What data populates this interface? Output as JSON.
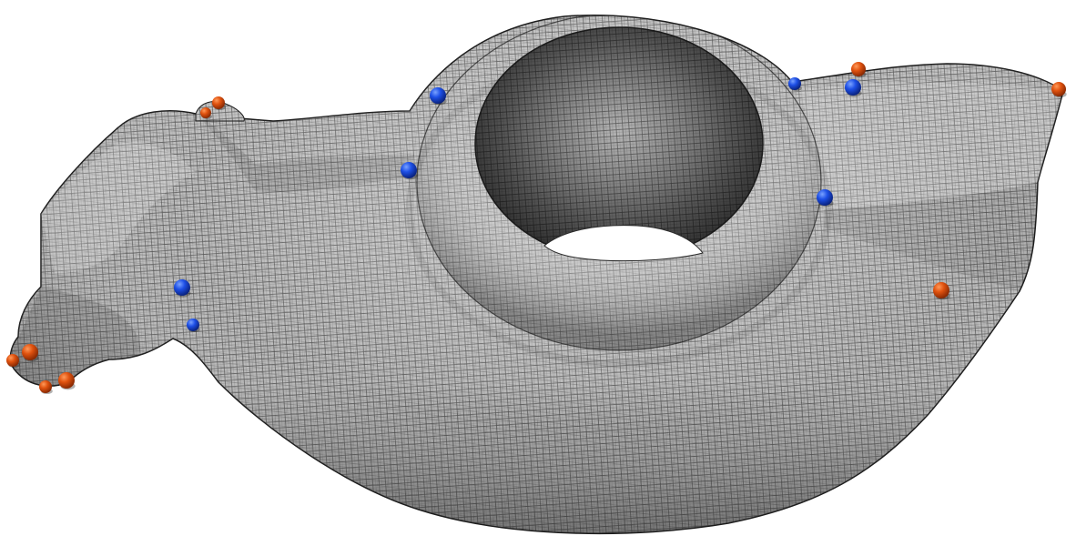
{
  "scene": {
    "background": "#ffffff",
    "surface_color": "#bdbdbd",
    "grid_color": "#2a2a2a",
    "marker_colors": {
      "orange": "#e0520f",
      "blue": "#1d4fe6"
    }
  }
}
